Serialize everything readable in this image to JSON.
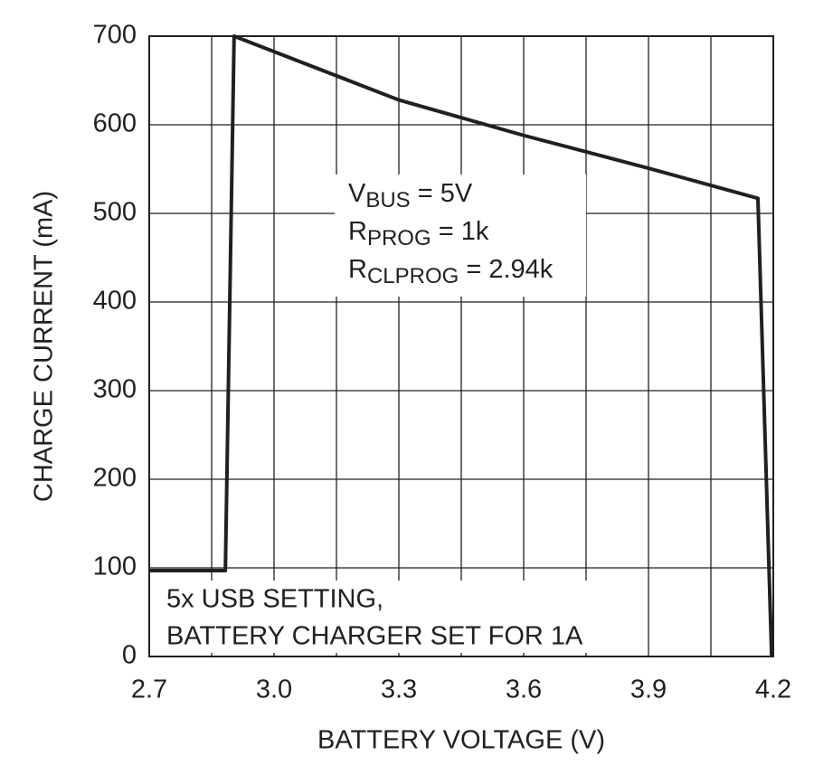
{
  "chart_data": {
    "type": "line",
    "xlabel": "BATTERY VOLTAGE (V)",
    "ylabel": "CHARGE CURRENT (mA)",
    "x": [
      2.7,
      2.883,
      2.904,
      3.3,
      3.6,
      3.9,
      4.163,
      4.196
    ],
    "series": [
      {
        "color": "#231f20",
        "values": [
          97,
          97,
          700,
          628,
          588,
          551,
          517,
          0
        ]
      }
    ],
    "xlim": [
      2.7,
      4.2
    ],
    "ylim": [
      0,
      700
    ],
    "xticks": [
      2.7,
      {
        "value": 3,
        "label": "3.0"
      },
      3.3,
      3.6,
      3.9,
      4.2
    ],
    "x_minor_grid": [
      2.85,
      3.15,
      3.45,
      3.75,
      4.05
    ],
    "yticks": [
      0,
      100,
      200,
      300,
      400,
      500,
      600,
      700
    ],
    "grid": true,
    "annotation_lines": [
      [
        "V",
        "BUS",
        " = 5V"
      ],
      [
        "R",
        "PROG",
        " = 1k"
      ],
      [
        "R",
        "CLPROG",
        " = 2.94k"
      ]
    ],
    "note_lines": [
      "5x USB SETTING,",
      "BATTERY CHARGER SET FOR 1A"
    ]
  }
}
